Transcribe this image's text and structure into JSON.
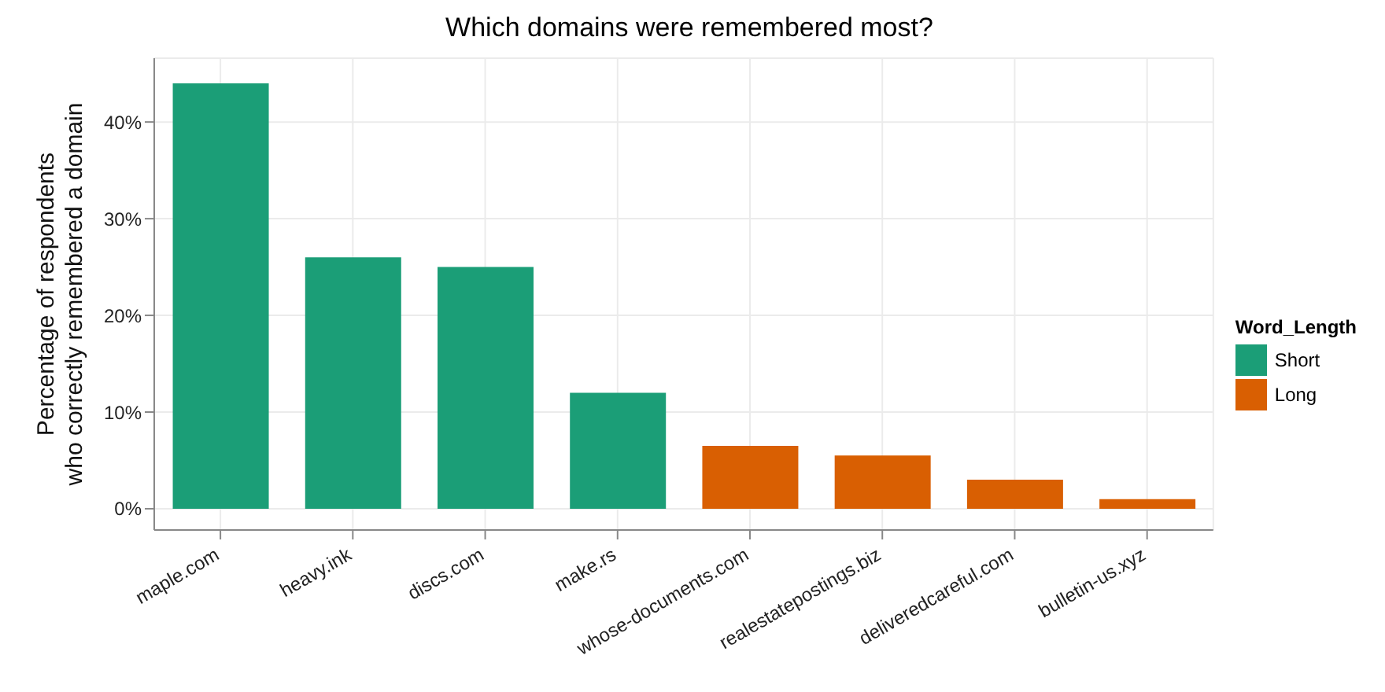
{
  "chart_data": {
    "type": "bar",
    "title": "Which domains were remembered most?",
    "ylabel": "Percentage of respondents\nwho correctly remembered a domain",
    "legend_title": "Word_Length",
    "categories": [
      "maple.com",
      "heavy.ink",
      "discs.com",
      "make.rs",
      "whose-documents.com",
      "realestatepostings.biz",
      "deliveredcareful.com",
      "bulletin-us.xyz"
    ],
    "series": [
      {
        "name": "Short",
        "color": "#1b9e77",
        "values": [
          44,
          26,
          25,
          12,
          null,
          null,
          null,
          null
        ]
      },
      {
        "name": "Long",
        "color": "#d95f02",
        "values": [
          null,
          null,
          null,
          null,
          6.5,
          5.5,
          3,
          1
        ]
      }
    ],
    "stacked": true,
    "ylim": [
      -2.2,
      46.6
    ],
    "yticks": [
      {
        "value": 0,
        "label": "0%"
      },
      {
        "value": 10,
        "label": "10%"
      },
      {
        "value": 20,
        "label": "20%"
      },
      {
        "value": 30,
        "label": "30%"
      },
      {
        "value": 40,
        "label": "40%"
      }
    ],
    "grid": true,
    "legend": "right"
  }
}
